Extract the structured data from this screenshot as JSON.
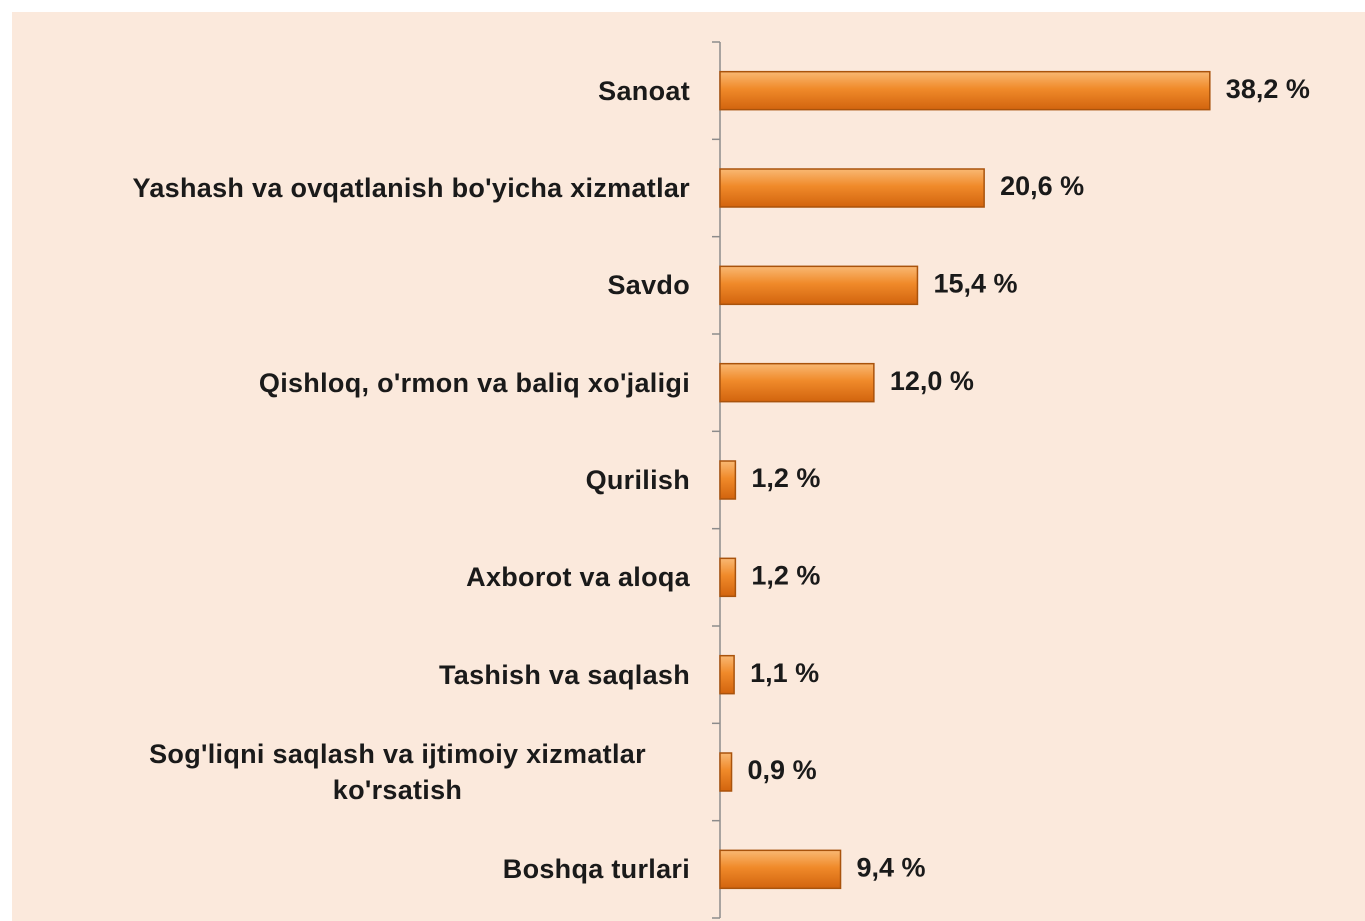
{
  "chart_data": {
    "type": "hbar",
    "categories": [
      "Sanoat",
      "Yashash va ovqatlanish bo'yicha xizmatlar",
      "Savdo",
      "Qishloq, o'rmon va baliq xo'jaligi",
      "Qurilish",
      "Axborot va aloqa",
      "Tashish va saqlash",
      "Sog'liqni saqlash va ijtimoiy xizmatlar ko'rsatish",
      "Boshqa turlari"
    ],
    "values": [
      38.2,
      20.6,
      15.4,
      12.0,
      1.2,
      1.2,
      1.1,
      0.9,
      9.4
    ],
    "value_labels": [
      "38,2 %",
      "20,6 %",
      "15,4 %",
      "12,0 %",
      "1,2 %",
      "1,2 %",
      "1,1 %",
      "0,9 %",
      "9,4 %"
    ],
    "color": "#f08a2a",
    "xlim": [
      0,
      45
    ]
  }
}
